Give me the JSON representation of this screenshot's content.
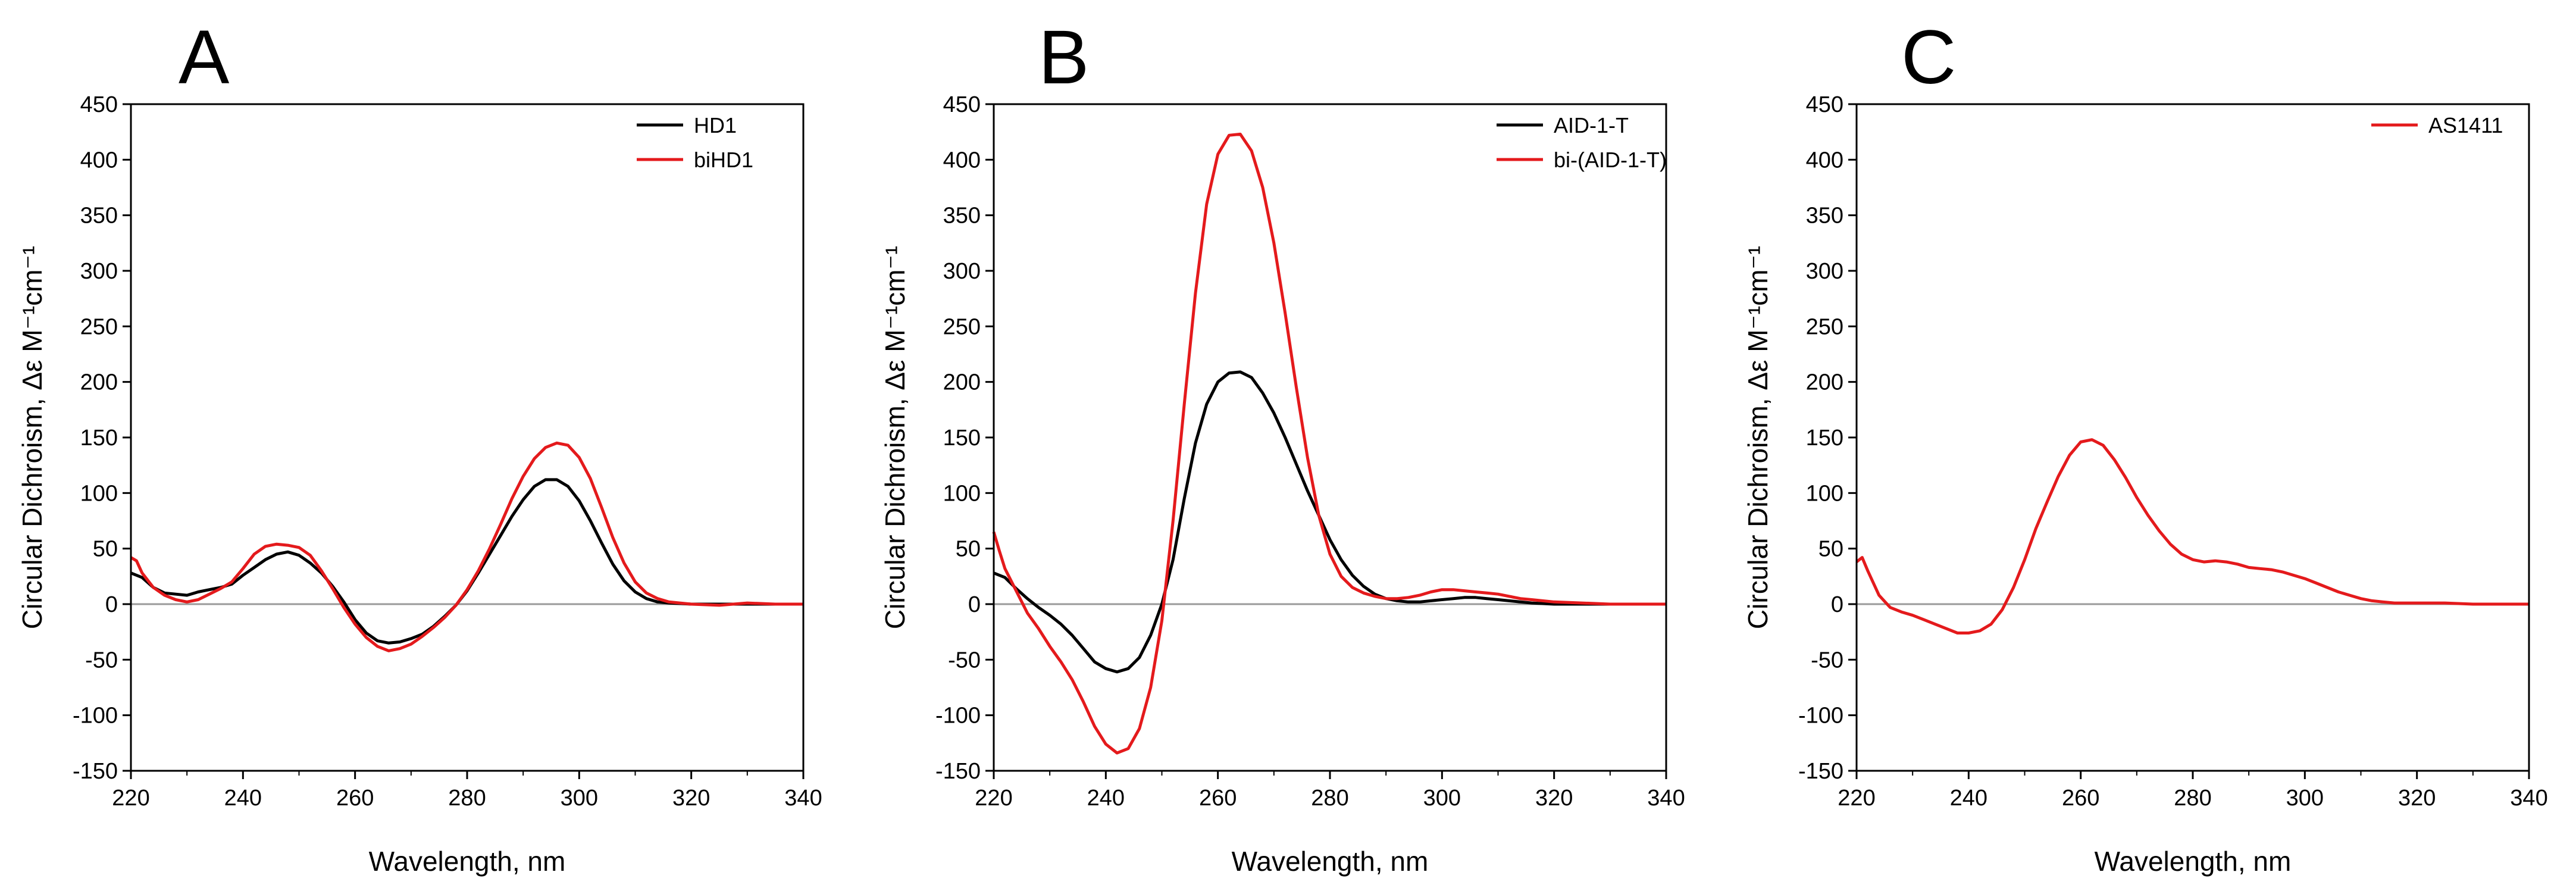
{
  "chart_data": [
    {
      "type": "line",
      "panel_label": "A",
      "xlabel": "Wavelength, nm",
      "ylabel": "Circular Dichroism, Δε M⁻¹cm⁻¹",
      "xlim": [
        220,
        340
      ],
      "ylim": [
        -150,
        450
      ],
      "x_ticks": [
        220,
        240,
        260,
        280,
        300,
        320,
        340
      ],
      "y_ticks": [
        -150,
        -100,
        -50,
        0,
        50,
        100,
        150,
        200,
        250,
        300,
        350,
        400,
        450
      ],
      "zero_line": true,
      "legend_position": "top-right",
      "series": [
        {
          "name": "HD1",
          "color": "#000000",
          "x": [
            220,
            222,
            224,
            226,
            228,
            230,
            232,
            234,
            236,
            238,
            240,
            242,
            244,
            246,
            248,
            250,
            252,
            254,
            256,
            258,
            260,
            262,
            264,
            266,
            268,
            270,
            272,
            274,
            276,
            278,
            280,
            282,
            284,
            286,
            288,
            290,
            292,
            294,
            296,
            298,
            300,
            302,
            304,
            306,
            308,
            310,
            312,
            314,
            316,
            320,
            325,
            330,
            335,
            340
          ],
          "y": [
            28,
            24,
            15,
            10,
            9,
            8,
            11,
            13,
            15,
            18,
            26,
            33,
            40,
            45,
            47,
            44,
            37,
            28,
            16,
            2,
            -14,
            -26,
            -33,
            -35,
            -34,
            -31,
            -27,
            -20,
            -11,
            -1,
            12,
            28,
            45,
            62,
            79,
            94,
            106,
            112,
            112,
            106,
            93,
            75,
            55,
            36,
            21,
            11,
            5,
            2,
            1,
            0,
            0,
            0,
            0,
            0
          ]
        },
        {
          "name": "biHD1",
          "color": "#e41a1c",
          "x": [
            220,
            221,
            222,
            224,
            226,
            228,
            230,
            232,
            234,
            236,
            238,
            240,
            242,
            244,
            246,
            248,
            250,
            252,
            254,
            256,
            258,
            260,
            262,
            264,
            266,
            268,
            270,
            272,
            274,
            276,
            278,
            280,
            282,
            284,
            286,
            288,
            290,
            292,
            294,
            296,
            298,
            300,
            302,
            304,
            306,
            308,
            310,
            312,
            314,
            316,
            320,
            325,
            330,
            335,
            340
          ],
          "y": [
            42,
            39,
            28,
            15,
            8,
            4,
            2,
            4,
            9,
            14,
            20,
            32,
            45,
            52,
            54,
            53,
            51,
            44,
            30,
            14,
            -3,
            -18,
            -30,
            -38,
            -42,
            -40,
            -36,
            -29,
            -21,
            -12,
            -1,
            13,
            30,
            50,
            72,
            95,
            115,
            131,
            141,
            145,
            143,
            132,
            113,
            87,
            60,
            37,
            20,
            10,
            5,
            2,
            0,
            -1,
            1,
            0,
            0
          ]
        }
      ]
    },
    {
      "type": "line",
      "panel_label": "B",
      "xlabel": "Wavelength, nm",
      "ylabel": "Circular Dichroism, Δε M⁻¹cm⁻¹",
      "xlim": [
        220,
        340
      ],
      "ylim": [
        -150,
        450
      ],
      "x_ticks": [
        220,
        240,
        260,
        280,
        300,
        320,
        340
      ],
      "y_ticks": [
        -150,
        -100,
        -50,
        0,
        50,
        100,
        150,
        200,
        250,
        300,
        350,
        400,
        450
      ],
      "zero_line": true,
      "legend_position": "top-right",
      "series": [
        {
          "name": "AID-1-T",
          "color": "#000000",
          "x": [
            220,
            222,
            224,
            226,
            228,
            230,
            232,
            234,
            236,
            238,
            240,
            242,
            244,
            246,
            248,
            250,
            252,
            254,
            256,
            258,
            260,
            262,
            264,
            266,
            268,
            270,
            272,
            274,
            276,
            278,
            280,
            282,
            284,
            286,
            288,
            290,
            292,
            294,
            296,
            298,
            300,
            302,
            304,
            306,
            308,
            310,
            312,
            316,
            320,
            325,
            330,
            335,
            340
          ],
          "y": [
            28,
            24,
            14,
            5,
            -3,
            -10,
            -18,
            -28,
            -40,
            -52,
            -58,
            -61,
            -58,
            -48,
            -28,
            0,
            40,
            95,
            145,
            180,
            200,
            208,
            209,
            204,
            190,
            172,
            150,
            126,
            102,
            80,
            58,
            40,
            26,
            16,
            9,
            5,
            3,
            2,
            2,
            3,
            4,
            5,
            6,
            6,
            5,
            4,
            3,
            1,
            0,
            0,
            0,
            0,
            0
          ]
        },
        {
          "name": "bi-(AID-1-T)",
          "color": "#e41a1c",
          "x": [
            220,
            221,
            222,
            224,
            226,
            228,
            230,
            232,
            234,
            236,
            238,
            240,
            242,
            244,
            246,
            248,
            250,
            252,
            254,
            256,
            258,
            260,
            262,
            264,
            266,
            268,
            270,
            272,
            274,
            276,
            278,
            280,
            282,
            284,
            286,
            288,
            290,
            292,
            294,
            296,
            298,
            300,
            302,
            304,
            306,
            308,
            310,
            312,
            314,
            316,
            320,
            325,
            330,
            335,
            340
          ],
          "y": [
            65,
            48,
            32,
            12,
            -8,
            -22,
            -38,
            -52,
            -68,
            -88,
            -110,
            -126,
            -134,
            -130,
            -112,
            -75,
            -15,
            75,
            180,
            280,
            360,
            405,
            422,
            423,
            408,
            375,
            325,
            262,
            195,
            132,
            80,
            45,
            25,
            15,
            10,
            7,
            5,
            5,
            6,
            8,
            11,
            13,
            13,
            12,
            11,
            10,
            9,
            7,
            5,
            4,
            2,
            1,
            0,
            0,
            0
          ]
        }
      ]
    },
    {
      "type": "line",
      "panel_label": "C",
      "xlabel": "Wavelength, nm",
      "ylabel": "Circular Dichroism, Δε M⁻¹cm⁻¹",
      "xlim": [
        220,
        340
      ],
      "ylim": [
        -150,
        450
      ],
      "x_ticks": [
        220,
        240,
        260,
        280,
        300,
        320,
        340
      ],
      "y_ticks": [
        -150,
        -100,
        -50,
        0,
        50,
        100,
        150,
        200,
        250,
        300,
        350,
        400,
        450
      ],
      "zero_line": true,
      "legend_position": "top-right",
      "series": [
        {
          "name": "AS1411",
          "color": "#e41a1c",
          "x": [
            220,
            221,
            222,
            224,
            226,
            228,
            230,
            232,
            234,
            236,
            238,
            240,
            242,
            244,
            246,
            248,
            250,
            252,
            254,
            256,
            258,
            260,
            262,
            264,
            266,
            268,
            270,
            272,
            274,
            276,
            278,
            280,
            282,
            284,
            286,
            288,
            290,
            292,
            294,
            296,
            298,
            300,
            302,
            304,
            306,
            308,
            310,
            312,
            314,
            316,
            318,
            320,
            325,
            330,
            335,
            340
          ],
          "y": [
            38,
            42,
            30,
            8,
            -3,
            -7,
            -10,
            -14,
            -18,
            -22,
            -26,
            -26,
            -24,
            -18,
            -5,
            15,
            40,
            68,
            92,
            115,
            134,
            146,
            148,
            143,
            130,
            114,
            96,
            80,
            66,
            54,
            45,
            40,
            38,
            39,
            38,
            36,
            33,
            32,
            31,
            29,
            26,
            23,
            19,
            15,
            11,
            8,
            5,
            3,
            2,
            1,
            1,
            1,
            1,
            0,
            0,
            0
          ]
        }
      ]
    }
  ]
}
